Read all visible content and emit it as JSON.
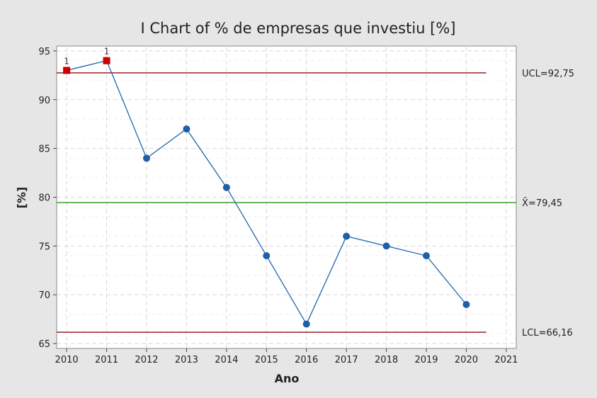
{
  "chart_data": {
    "type": "line",
    "title": "I Chart of % de empresas que investiu [%]",
    "xlabel": "Ano",
    "ylabel": "[%]",
    "x": [
      2010,
      2011,
      2012,
      2013,
      2014,
      2015,
      2016,
      2017,
      2018,
      2019,
      2020
    ],
    "x_ticks": [
      2010,
      2011,
      2012,
      2013,
      2014,
      2015,
      2016,
      2017,
      2018,
      2019,
      2020,
      2021
    ],
    "xlim": [
      2010,
      2021
    ],
    "y_ticks": [
      65,
      70,
      75,
      80,
      85,
      90,
      95
    ],
    "ylim": [
      64.5,
      95.5
    ],
    "series": [
      {
        "values": [
          93,
          94,
          84,
          87,
          81,
          74,
          67,
          76,
          75,
          74,
          69
        ]
      }
    ],
    "out_of_control_flags": [
      {
        "x": 2010,
        "label": "1"
      },
      {
        "x": 2011,
        "label": "1"
      }
    ],
    "control_limits": {
      "ucl": {
        "value": 92.75,
        "label": "UCL=92,75"
      },
      "center": {
        "value": 79.45,
        "label": "X̄=79,45"
      },
      "lcl": {
        "value": 66.16,
        "label": "LCL=66,16"
      }
    },
    "grid": true,
    "colors": {
      "series": "#2166ac",
      "marker": "#1f5ea8",
      "flagged_marker": "#cc0000",
      "limit_line": "#a02020",
      "center_line": "#33a02c",
      "grid": "#d8d8d8",
      "plot_background": "#ffffff",
      "figure_background": "#e6e6e6"
    }
  }
}
